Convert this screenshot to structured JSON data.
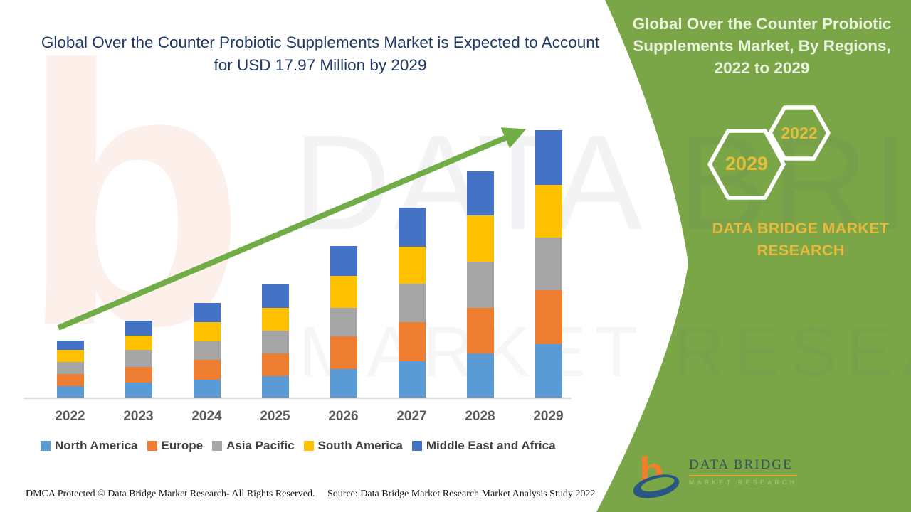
{
  "header": {
    "title": "Global Over the Counter Probiotic Supplements Market is Expected to Account for USD 17.97 Million by 2029"
  },
  "side_panel": {
    "heading": "Global Over the Counter Probiotic Supplements Market, By Regions, 2022 to 2029",
    "hexagon_years": [
      "2029",
      "2022"
    ],
    "brand": "DATA BRIDGE MARKET RESEARCH",
    "panel_color": "#7AA647",
    "accent_gold": "#E4BE3B",
    "hex_stroke_color": "#FFFFFF"
  },
  "watermark": {
    "glyph": "b",
    "line1": "DATA BRIDGE",
    "line2": "MARKET RESEARCH"
  },
  "logo": {
    "glyph": "b",
    "title": "DATA BRIDGE",
    "subtitle": "MARKET RESEARCH"
  },
  "footer": {
    "dmca": "DMCA Protected © Data Bridge Market Research- All Rights Reserved.",
    "source": "Source: Data Bridge Market Research Market Analysis Study 2022"
  },
  "chart_data": {
    "type": "bar",
    "stacked": true,
    "title": "Global Over the Counter Probiotic Supplements Market, By Regions, 2022 to 2029",
    "unit": "USD Million",
    "categories": [
      "2022",
      "2023",
      "2024",
      "2025",
      "2026",
      "2027",
      "2028",
      "2029"
    ],
    "series": [
      {
        "name": "North America",
        "color": "#5B9BD5",
        "values": [
          0.76,
          0.99,
          1.2,
          1.43,
          1.91,
          2.42,
          2.98,
          3.57
        ]
      },
      {
        "name": "Europe",
        "color": "#ED7D31",
        "values": [
          0.81,
          1.07,
          1.35,
          1.56,
          2.18,
          2.63,
          3.07,
          3.63
        ]
      },
      {
        "name": "Asia Pacific",
        "color": "#A5A5A5",
        "values": [
          0.81,
          1.16,
          1.24,
          1.5,
          1.91,
          2.6,
          3.09,
          3.54
        ]
      },
      {
        "name": "South America",
        "color": "#FFC000",
        "values": [
          0.81,
          0.93,
          1.26,
          1.56,
          2.15,
          2.5,
          3.11,
          3.57
        ]
      },
      {
        "name": "Middle East and Africa",
        "color": "#4472C4",
        "values": [
          0.62,
          1.03,
          1.29,
          1.56,
          2.01,
          2.6,
          2.96,
          3.66
        ]
      }
    ],
    "totals": [
      3.81,
      5.18,
      6.34,
      7.61,
      10.16,
      12.75,
      15.21,
      17.97
    ],
    "ylim": [
      0,
      18
    ],
    "grid": false,
    "legend_position": "bottom",
    "trend_arrow": {
      "color": "#70AD47",
      "from": "2022",
      "to": "2029"
    }
  }
}
